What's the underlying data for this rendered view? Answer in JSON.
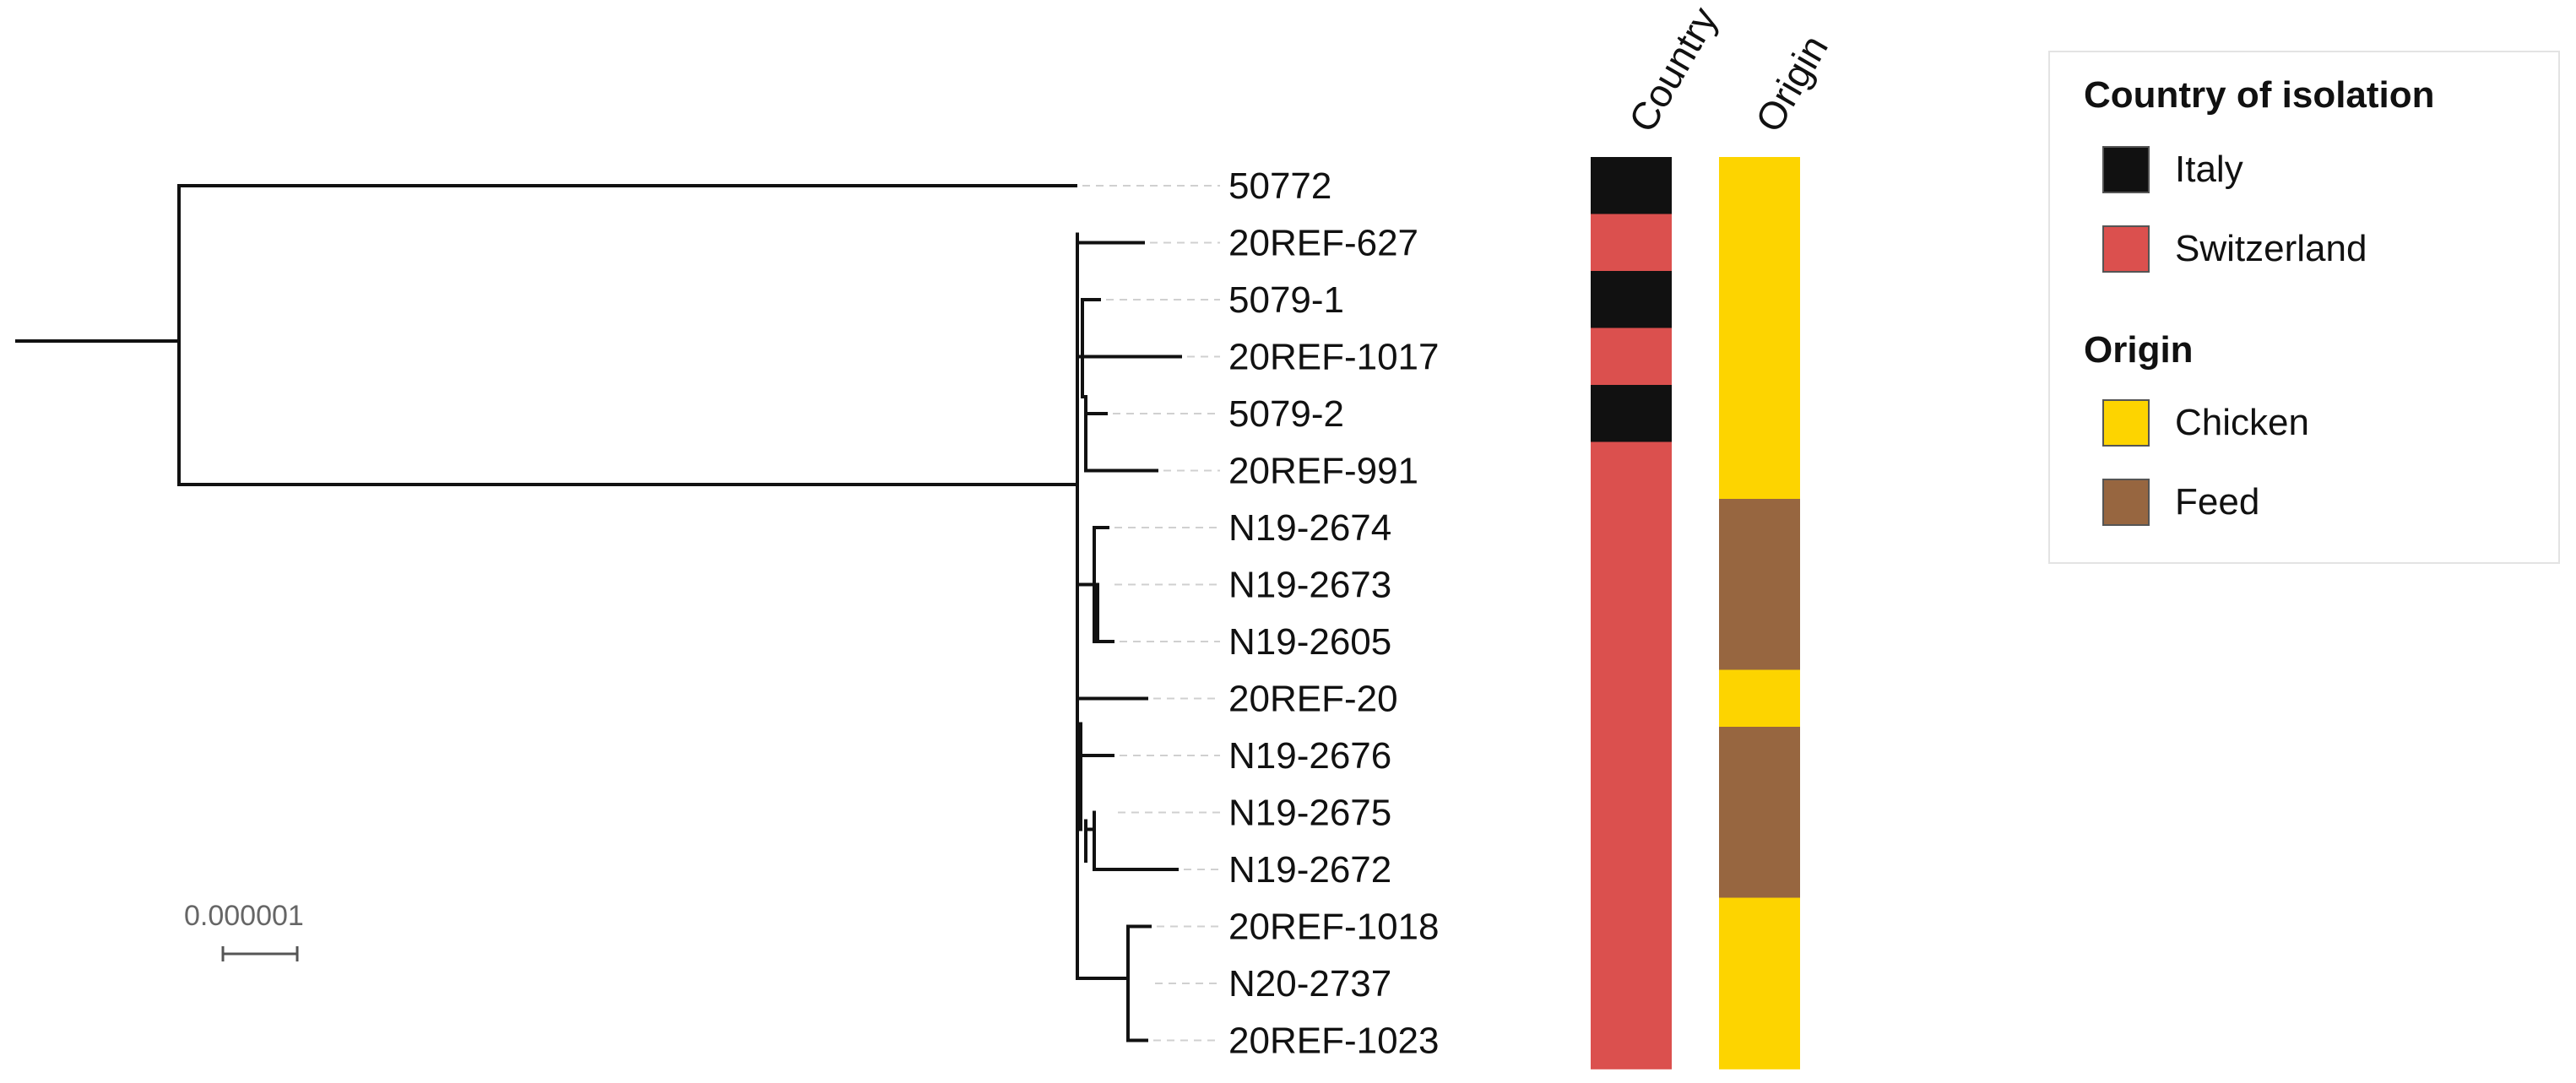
{
  "tree": {
    "tips": [
      "50772",
      "20REF-627",
      "5079-1",
      "20REF-1017",
      "5079-2",
      "20REF-991",
      "N19-2674",
      "N19-2673",
      "N19-2605",
      "20REF-20",
      "N19-2676",
      "N19-2675",
      "N19-2672",
      "20REF-1018",
      "N20-2737",
      "20REF-1023"
    ],
    "scale_label": "0.000001"
  },
  "columns": {
    "country_header": "Country",
    "origin_header": "Origin"
  },
  "annotations": {
    "country": [
      "Italy",
      "Switzerland",
      "Italy",
      "Switzerland",
      "Italy",
      "Switzerland",
      "Switzerland",
      "Switzerland",
      "Switzerland",
      "Switzerland",
      "Switzerland",
      "Switzerland",
      "Switzerland",
      "Switzerland",
      "Switzerland",
      "Switzerland"
    ],
    "origin": [
      "Chicken",
      "Chicken",
      "Chicken",
      "Chicken",
      "Chicken",
      "Chicken",
      "Feed",
      "Feed",
      "Feed",
      "Chicken",
      "Feed",
      "Feed",
      "Feed",
      "Chicken",
      "Chicken",
      "Chicken"
    ]
  },
  "legend": {
    "country_title": "Country of isolation",
    "country_items": [
      {
        "label": "Italy",
        "color": "#111111"
      },
      {
        "label": "Switzerland",
        "color": "#db504e"
      }
    ],
    "origin_title": "Origin",
    "origin_items": [
      {
        "label": "Chicken",
        "color": "#fdd400"
      },
      {
        "label": "Feed",
        "color": "#976640"
      }
    ]
  }
}
